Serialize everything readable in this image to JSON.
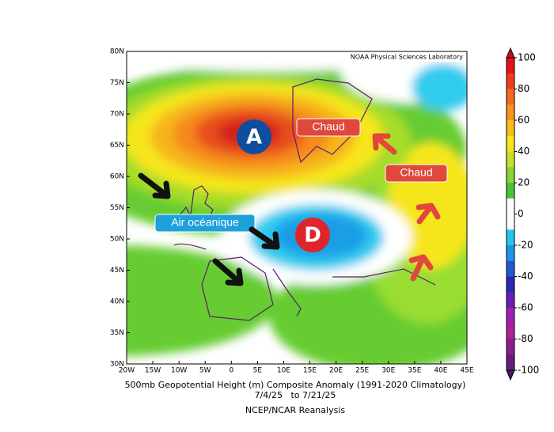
{
  "map": {
    "credit": "NOAA Physical Sciences Laboratory",
    "lat_labels": [
      "30N",
      "35N",
      "40N",
      "45N",
      "50N",
      "55N",
      "60N",
      "65N",
      "70N",
      "75N",
      "80N"
    ],
    "lon_labels": [
      "20W",
      "15W",
      "10W",
      "5W",
      "0",
      "5E",
      "10E",
      "15E",
      "20E",
      "25E",
      "30E",
      "35E",
      "40E",
      "45E"
    ],
    "annotations": {
      "high": "A",
      "low": "D",
      "warm_north": "Chaud",
      "warm_east": "Chaud",
      "ocean_air": "Air océanique"
    }
  },
  "colorbar": {
    "ticks": [
      100,
      80,
      60,
      40,
      20,
      0,
      -20,
      -40,
      -60,
      -80,
      -100
    ]
  },
  "caption": {
    "line1": "500mb Geopotential Height (m) Composite Anomaly (1991-2020 Climatology)",
    "line2": "7/4/25   to 7/21/25",
    "line3": "NCEP/NCAR Reanalysis"
  }
}
